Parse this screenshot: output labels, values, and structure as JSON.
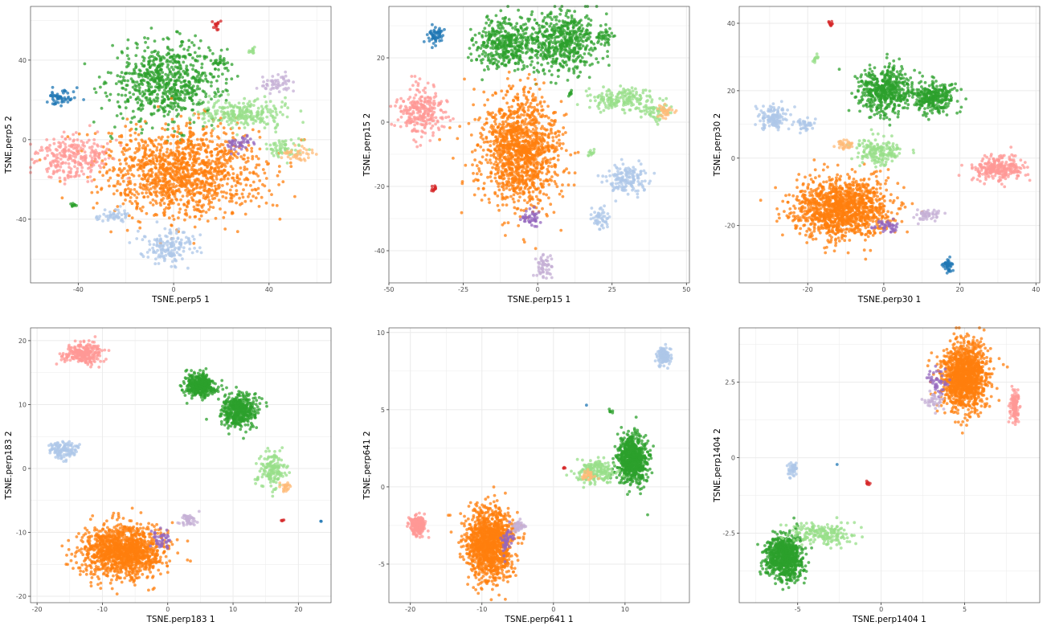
{
  "palette": {
    "dark_blue": "#1f77b4",
    "light_blue": "#aec7e8",
    "orange": "#ff7f0e",
    "light_orange": "#ffbb78",
    "green": "#2ca02c",
    "light_green": "#98df8a",
    "red": "#d62728",
    "pink": "#ff9896",
    "purple": "#9467bd",
    "lavender": "#c5b0d5",
    "brown": "#8c564b",
    "grid": "#ebebeb",
    "panel_border": "#333333"
  },
  "chart_data": [
    {
      "type": "scatter",
      "xlabel": "TSNE.perp5 1",
      "ylabel": "TSNE.perp5 2",
      "grid": true,
      "xlim": [
        -60,
        66
      ],
      "ylim": [
        -72,
        67
      ],
      "xticks": [
        -40,
        0,
        40
      ],
      "yticks": [
        -40,
        0,
        40
      ],
      "clusters": [
        {
          "color": "green",
          "cx": -3,
          "cy": 29,
          "rx": 26,
          "ry": 22,
          "n": 700
        },
        {
          "color": "green",
          "cx": 20,
          "cy": 39,
          "rx": 4,
          "ry": 4,
          "n": 25
        },
        {
          "color": "orange",
          "cx": 4,
          "cy": -16,
          "rx": 36,
          "ry": 25,
          "n": 1300
        },
        {
          "color": "pink",
          "cx": -42,
          "cy": -9,
          "rx": 17,
          "ry": 12,
          "n": 260
        },
        {
          "color": "light_blue",
          "cx": -3,
          "cy": -54,
          "rx": 13,
          "ry": 9,
          "n": 160
        },
        {
          "color": "light_blue",
          "cx": -25,
          "cy": -38,
          "rx": 7,
          "ry": 4,
          "n": 45
        },
        {
          "color": "dark_blue",
          "cx": -47,
          "cy": 21,
          "rx": 7,
          "ry": 5,
          "n": 55
        },
        {
          "color": "light_green",
          "cx": 30,
          "cy": 13,
          "rx": 20,
          "ry": 8,
          "n": 250
        },
        {
          "color": "light_green",
          "cx": 46,
          "cy": -4,
          "rx": 9,
          "ry": 5,
          "n": 60
        },
        {
          "color": "light_orange",
          "cx": 52,
          "cy": -7,
          "rx": 6,
          "ry": 4,
          "n": 40
        },
        {
          "color": "lavender",
          "cx": 43,
          "cy": 28,
          "rx": 8,
          "ry": 5,
          "n": 55
        },
        {
          "color": "purple",
          "cx": 27,
          "cy": -2,
          "rx": 8,
          "ry": 4,
          "n": 45
        },
        {
          "color": "red",
          "cx": 18,
          "cy": 58,
          "rx": 2,
          "ry": 3,
          "n": 14
        },
        {
          "color": "light_green",
          "cx": 33,
          "cy": 45,
          "rx": 2,
          "ry": 2,
          "n": 12
        },
        {
          "color": "green",
          "cx": -42,
          "cy": -33,
          "rx": 1.5,
          "ry": 2,
          "n": 10
        }
      ]
    },
    {
      "type": "scatter",
      "xlabel": "TSNE.perp15 1",
      "ylabel": "TSNE.perp15 2",
      "grid": true,
      "xlim": [
        -50,
        51
      ],
      "ylim": [
        -50,
        36
      ],
      "xticks": [
        -50,
        -25,
        0,
        25,
        50
      ],
      "yticks": [
        -40,
        -20,
        0,
        20
      ],
      "clusters": [
        {
          "color": "green",
          "cx": -10,
          "cy": 24,
          "rx": 12,
          "ry": 9,
          "n": 420
        },
        {
          "color": "green",
          "cx": 9,
          "cy": 25,
          "rx": 13,
          "ry": 10,
          "n": 500
        },
        {
          "color": "green",
          "cx": 23,
          "cy": 27,
          "rx": 3,
          "ry": 3,
          "n": 25
        },
        {
          "color": "orange",
          "cx": -6,
          "cy": -9,
          "rx": 15,
          "ry": 20,
          "n": 1300
        },
        {
          "color": "pink",
          "cx": -39,
          "cy": 3,
          "rx": 9,
          "ry": 8,
          "n": 260
        },
        {
          "color": "light_green",
          "cx": 28,
          "cy": 7,
          "rx": 12,
          "ry": 4,
          "n": 180
        },
        {
          "color": "light_green",
          "cx": 40,
          "cy": 3,
          "rx": 6,
          "ry": 3,
          "n": 50
        },
        {
          "color": "light_orange",
          "cx": 43,
          "cy": 3,
          "rx": 4,
          "ry": 3,
          "n": 35
        },
        {
          "color": "light_blue",
          "cx": 30,
          "cy": -18,
          "rx": 7,
          "ry": 5,
          "n": 150
        },
        {
          "color": "light_blue",
          "cx": 21,
          "cy": -30,
          "rx": 3,
          "ry": 4,
          "n": 50
        },
        {
          "color": "lavender",
          "cx": 2,
          "cy": -45,
          "rx": 3,
          "ry": 4,
          "n": 60
        },
        {
          "color": "dark_blue",
          "cx": -34,
          "cy": 27,
          "rx": 3,
          "ry": 3,
          "n": 55
        },
        {
          "color": "purple",
          "cx": -2,
          "cy": -30,
          "rx": 4,
          "ry": 3,
          "n": 45
        },
        {
          "color": "red",
          "cx": -35,
          "cy": -21,
          "rx": 1.5,
          "ry": 1,
          "n": 12
        },
        {
          "color": "light_green",
          "cx": 18,
          "cy": -10,
          "rx": 1.5,
          "ry": 1.5,
          "n": 12
        },
        {
          "color": "green",
          "cx": 11,
          "cy": 9,
          "rx": 1,
          "ry": 1,
          "n": 8
        }
      ]
    },
    {
      "type": "scatter",
      "xlabel": "TSNE.perp30 1",
      "ylabel": "TSNE.perp30 2",
      "grid": true,
      "xlim": [
        -38,
        41
      ],
      "ylim": [
        -37,
        45
      ],
      "xticks": [
        -20,
        0,
        20,
        40
      ],
      "yticks": [
        -20,
        0,
        20,
        40
      ],
      "clusters": [
        {
          "color": "green",
          "cx": 0,
          "cy": 20,
          "rx": 8,
          "ry": 8,
          "n": 500
        },
        {
          "color": "green",
          "cx": 13,
          "cy": 18,
          "rx": 7,
          "ry": 5,
          "n": 300
        },
        {
          "color": "orange",
          "cx": -11,
          "cy": -15,
          "rx": 14,
          "ry": 10,
          "n": 1300
        },
        {
          "color": "pink",
          "cx": 30,
          "cy": -3,
          "rx": 7,
          "ry": 4,
          "n": 260
        },
        {
          "color": "light_blue",
          "cx": -29,
          "cy": 12,
          "rx": 4,
          "ry": 4,
          "n": 130
        },
        {
          "color": "light_blue",
          "cx": -21,
          "cy": 10,
          "rx": 3,
          "ry": 2,
          "n": 40
        },
        {
          "color": "light_green",
          "cx": -1,
          "cy": 2,
          "rx": 7,
          "ry": 4,
          "n": 180
        },
        {
          "color": "light_orange",
          "cx": -10,
          "cy": 4,
          "rx": 3,
          "ry": 2,
          "n": 35
        },
        {
          "color": "lavender",
          "cx": 12,
          "cy": -17,
          "rx": 4,
          "ry": 2,
          "n": 50
        },
        {
          "color": "purple",
          "cx": 1,
          "cy": -20,
          "rx": 4,
          "ry": 2,
          "n": 45
        },
        {
          "color": "dark_blue",
          "cx": 17,
          "cy": -32,
          "rx": 1.5,
          "ry": 2,
          "n": 40
        },
        {
          "color": "red",
          "cx": -14,
          "cy": 40,
          "rx": 0.6,
          "ry": 1,
          "n": 10
        },
        {
          "color": "light_green",
          "cx": -18,
          "cy": 30,
          "rx": 1,
          "ry": 2,
          "n": 12
        }
      ]
    },
    {
      "type": "scatter",
      "xlabel": "TSNE.perp183 1",
      "ylabel": "TSNE.perp183 2",
      "grid": true,
      "xlim": [
        -21,
        25
      ],
      "ylim": [
        -21,
        22
      ],
      "xticks": [
        -20,
        -10,
        0,
        10,
        20
      ],
      "yticks": [
        -20,
        -10,
        0,
        10,
        20
      ],
      "clusters": [
        {
          "color": "green",
          "cx": 5,
          "cy": 13,
          "rx": 2.5,
          "ry": 2,
          "n": 400
        },
        {
          "color": "green",
          "cx": 11,
          "cy": 9,
          "rx": 3,
          "ry": 3,
          "n": 450
        },
        {
          "color": "light_green",
          "cx": 16,
          "cy": 0,
          "rx": 2.5,
          "ry": 3,
          "n": 160
        },
        {
          "color": "light_orange",
          "cx": 18,
          "cy": -3,
          "rx": 1,
          "ry": 1,
          "n": 25
        },
        {
          "color": "orange",
          "cx": -7,
          "cy": -13,
          "rx": 7,
          "ry": 4.5,
          "n": 1300
        },
        {
          "color": "pink",
          "cx": -13,
          "cy": 18,
          "rx": 3.5,
          "ry": 1.7,
          "n": 260
        },
        {
          "color": "light_blue",
          "cx": -16,
          "cy": 3,
          "rx": 2.5,
          "ry": 1.5,
          "n": 130
        },
        {
          "color": "lavender",
          "cx": 3,
          "cy": -8,
          "rx": 1.2,
          "ry": 1,
          "n": 45
        },
        {
          "color": "purple",
          "cx": -1,
          "cy": -11,
          "rx": 2,
          "ry": 1.5,
          "n": 45
        },
        {
          "color": "dark_blue",
          "cx": 23.5,
          "cy": -8.3,
          "rx": 0.1,
          "ry": 0.1,
          "n": 2
        },
        {
          "color": "red",
          "cx": 17.5,
          "cy": -8,
          "rx": 0.4,
          "ry": 0.3,
          "n": 4
        }
      ]
    },
    {
      "type": "scatter",
      "xlabel": "TSNE.perp641 1",
      "ylabel": "TSNE.perp641 2",
      "grid": true,
      "xlim": [
        -23,
        19
      ],
      "ylim": [
        -7.5,
        10.3
      ],
      "xticks": [
        -20,
        -10,
        0,
        10
      ],
      "yticks": [
        -5,
        0,
        5,
        10
      ],
      "clusters": [
        {
          "color": "green",
          "cx": 11,
          "cy": 1.8,
          "rx": 2.5,
          "ry": 1.8,
          "n": 700
        },
        {
          "color": "light_green",
          "cx": 6,
          "cy": 1,
          "rx": 3,
          "ry": 0.8,
          "n": 200
        },
        {
          "color": "light_orange",
          "cx": 5,
          "cy": 0.8,
          "rx": 1,
          "ry": 0.5,
          "n": 30
        },
        {
          "color": "orange",
          "cx": -9,
          "cy": -3.7,
          "rx": 3.5,
          "ry": 2.5,
          "n": 1300
        },
        {
          "color": "pink",
          "cx": -19,
          "cy": -2.5,
          "rx": 1.2,
          "ry": 0.7,
          "n": 200
        },
        {
          "color": "light_blue",
          "cx": 15.5,
          "cy": 8.5,
          "rx": 1,
          "ry": 0.6,
          "n": 120
        },
        {
          "color": "lavender",
          "cx": -5,
          "cy": -2.6,
          "rx": 1,
          "ry": 0.5,
          "n": 40
        },
        {
          "color": "purple",
          "cx": -6.5,
          "cy": -3.5,
          "rx": 1,
          "ry": 1,
          "n": 45
        },
        {
          "color": "red",
          "cx": 1.5,
          "cy": 1.2,
          "rx": 0.2,
          "ry": 0.1,
          "n": 4
        },
        {
          "color": "dark_blue",
          "cx": 4.6,
          "cy": 5.3,
          "rx": 0.05,
          "ry": 0.05,
          "n": 1
        },
        {
          "color": "green",
          "cx": 8,
          "cy": 4.9,
          "rx": 0.3,
          "ry": 0.1,
          "n": 6
        }
      ]
    },
    {
      "type": "scatter",
      "xlabel": "TSNE.perp1404 1",
      "ylabel": "TSNE.perp1404 2",
      "grid": true,
      "xlim": [
        -8.5,
        9.5
      ],
      "ylim": [
        -4.8,
        4.3
      ],
      "xticks": [
        -5,
        0,
        5
      ],
      "yticks": [
        -2.5,
        0.0,
        2.5
      ],
      "clusters": [
        {
          "color": "orange",
          "cx": 5,
          "cy": 2.7,
          "rx": 1.5,
          "ry": 1.2,
          "n": 1300
        },
        {
          "color": "pink",
          "cx": 8,
          "cy": 1.7,
          "rx": 0.3,
          "ry": 0.6,
          "n": 120
        },
        {
          "color": "purple",
          "cx": 3.5,
          "cy": 2.5,
          "rx": 0.8,
          "ry": 0.7,
          "n": 45
        },
        {
          "color": "lavender",
          "cx": 3.2,
          "cy": 1.9,
          "rx": 0.7,
          "ry": 0.3,
          "n": 40
        },
        {
          "color": "green",
          "cx": -5.8,
          "cy": -3.3,
          "rx": 1.2,
          "ry": 0.8,
          "n": 800
        },
        {
          "color": "light_green",
          "cx": -3.5,
          "cy": -2.5,
          "rx": 2,
          "ry": 0.4,
          "n": 200
        },
        {
          "color": "light_blue",
          "cx": -5.3,
          "cy": -0.4,
          "rx": 0.3,
          "ry": 0.25,
          "n": 50
        },
        {
          "color": "red",
          "cx": -0.8,
          "cy": -0.85,
          "rx": 0.2,
          "ry": 0.08,
          "n": 8
        },
        {
          "color": "dark_blue",
          "cx": -2.6,
          "cy": -0.25,
          "rx": 0.05,
          "ry": 0.05,
          "n": 1
        }
      ]
    }
  ]
}
